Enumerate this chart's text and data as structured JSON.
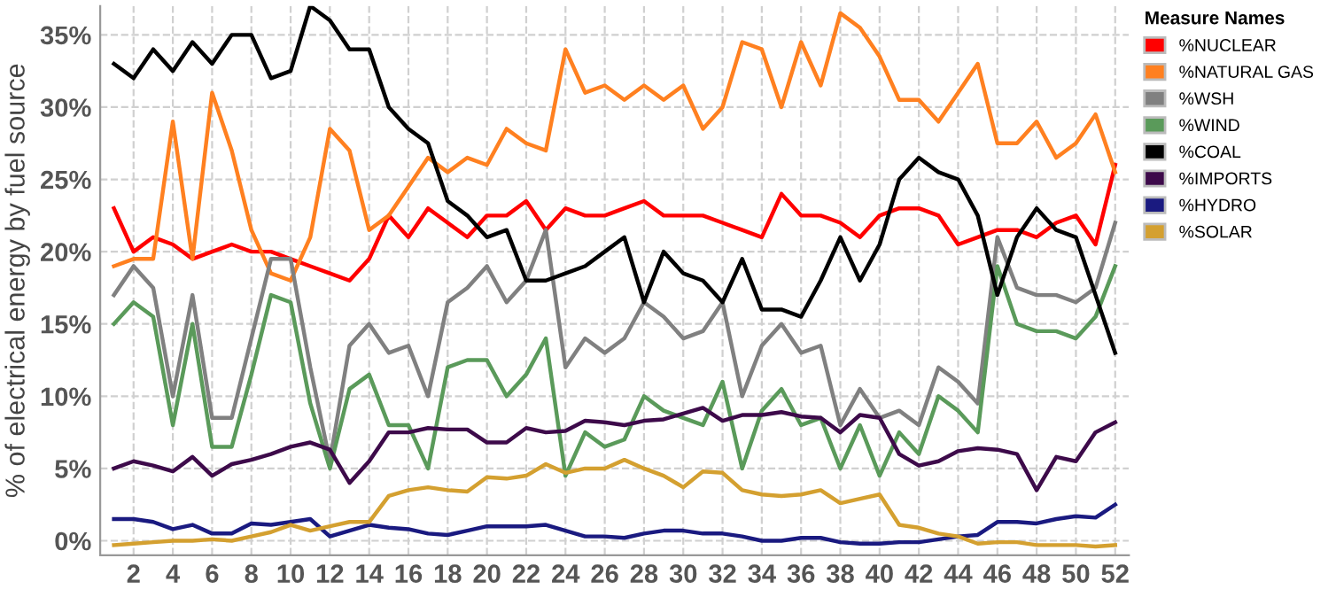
{
  "chart_data": {
    "type": "line",
    "ylabel": "% of electrical energy by fuel source",
    "legend_title": "Measure Names",
    "legend": "right",
    "grid": true,
    "x": [
      1,
      2,
      3,
      4,
      5,
      6,
      7,
      8,
      9,
      10,
      11,
      12,
      13,
      14,
      15,
      16,
      17,
      18,
      19,
      20,
      21,
      22,
      23,
      24,
      25,
      26,
      27,
      28,
      29,
      30,
      31,
      32,
      33,
      34,
      35,
      36,
      37,
      38,
      39,
      40,
      41,
      42,
      43,
      44,
      45,
      46,
      47,
      48,
      49,
      50,
      51,
      52
    ],
    "xlim": [
      0.3,
      52.7
    ],
    "xticks": [
      2,
      4,
      6,
      8,
      10,
      12,
      14,
      16,
      18,
      20,
      22,
      24,
      26,
      28,
      30,
      32,
      34,
      36,
      38,
      40,
      42,
      44,
      46,
      48,
      50,
      52
    ],
    "ylim": [
      -1,
      37
    ],
    "yticks": [
      {
        "value": 0,
        "label": "0%"
      },
      {
        "value": 5,
        "label": "5%"
      },
      {
        "value": 10,
        "label": "10%"
      },
      {
        "value": 15,
        "label": "15%"
      },
      {
        "value": 20,
        "label": "20%"
      },
      {
        "value": 25,
        "label": "25%"
      },
      {
        "value": 30,
        "label": "30%"
      },
      {
        "value": 35,
        "label": "35%"
      }
    ],
    "series": [
      {
        "name": "%NUCLEAR",
        "color": "#ff0000",
        "values": [
          23,
          20,
          21,
          20.5,
          19.5,
          20,
          20.5,
          20,
          20,
          19.5,
          19,
          18.5,
          18,
          19.5,
          22.5,
          21,
          23,
          22,
          21,
          22.5,
          22.5,
          23.5,
          21.5,
          23,
          22.5,
          22.5,
          23,
          23.5,
          22.5,
          22.5,
          22.5,
          22,
          21.5,
          21,
          24,
          22.5,
          22.5,
          22,
          21,
          22.5,
          23,
          23,
          22.5,
          20.5,
          21,
          21.5,
          21.5,
          21,
          22,
          22.5,
          20.5,
          26
        ]
      },
      {
        "name": "%NATURAL GAS",
        "color": "#ff8020",
        "values": [
          19,
          19.5,
          19.5,
          29,
          19.5,
          31,
          27,
          21.5,
          18.5,
          18,
          21,
          28.5,
          27,
          21.5,
          22.5,
          24.5,
          26.5,
          25.5,
          26.5,
          26,
          28.5,
          27.5,
          27,
          34,
          31,
          31.5,
          30.5,
          31.5,
          30.5,
          31.5,
          28.5,
          30,
          34.5,
          34,
          30,
          34.5,
          31.5,
          36.5,
          35.5,
          33.5,
          30.5,
          30.5,
          29,
          31,
          33,
          27.5,
          27.5,
          29,
          26.5,
          27.5,
          29.5,
          25.5
        ]
      },
      {
        "name": "%WSH",
        "color": "#808080",
        "values": [
          17,
          19,
          17.5,
          10,
          17,
          8.5,
          8.5,
          14,
          19.5,
          19.5,
          12,
          5.5,
          13.5,
          15,
          13,
          13.5,
          10,
          16.5,
          17.5,
          19,
          16.5,
          18,
          21.5,
          12,
          14,
          13,
          14,
          16.5,
          15.5,
          14,
          14.5,
          16.5,
          10,
          13.5,
          15,
          13,
          13.5,
          8,
          10.5,
          8.5,
          9,
          8,
          12,
          11,
          9.5,
          21,
          17.5,
          17,
          17,
          16.5,
          17.5,
          22
        ]
      },
      {
        "name": "%WIND",
        "color": "#5a9a5a",
        "values": [
          15,
          16.5,
          15.5,
          8,
          15,
          6.5,
          6.5,
          11.5,
          17,
          16.5,
          9.5,
          5,
          10.5,
          11.5,
          8,
          8,
          5,
          12,
          12.5,
          12.5,
          10,
          11.5,
          14,
          4.5,
          7.5,
          6.5,
          7,
          10,
          9,
          8.5,
          8,
          11,
          5,
          9,
          10.5,
          8,
          8.5,
          5,
          8,
          4.5,
          7.5,
          6,
          10,
          9,
          7.5,
          19,
          15,
          14.5,
          14.5,
          14,
          15.5,
          19
        ]
      },
      {
        "name": "%COAL",
        "color": "#000000",
        "values": [
          33,
          32,
          34,
          32.5,
          34.5,
          33,
          35,
          35,
          32,
          32.5,
          37,
          36,
          34,
          34,
          30,
          28.5,
          27.5,
          23.5,
          22.5,
          21,
          21.5,
          18,
          18,
          18.5,
          19,
          20,
          21,
          16.5,
          20,
          18.5,
          18,
          16.5,
          19.5,
          16,
          16,
          15.5,
          18,
          21,
          18,
          20.5,
          25,
          26.5,
          25.5,
          25,
          22.5,
          17,
          21,
          23,
          21.5,
          21,
          17,
          13
        ]
      },
      {
        "name": "%IMPORTS",
        "color": "#3d0a4a",
        "values": [
          5,
          5.5,
          5.2,
          4.8,
          5.8,
          4.5,
          5.3,
          5.6,
          6,
          6.5,
          6.8,
          6.3,
          4,
          5.5,
          7.5,
          7.5,
          7.8,
          7.7,
          7.7,
          6.8,
          6.8,
          7.8,
          7.5,
          7.6,
          8.3,
          8.2,
          8,
          8.3,
          8.4,
          8.8,
          9.2,
          8.3,
          8.7,
          8.7,
          8.9,
          8.6,
          8.5,
          7.5,
          8.7,
          8.5,
          6,
          5.2,
          5.5,
          6.2,
          6.4,
          6.3,
          6,
          3.5,
          5.8,
          5.5,
          7.5,
          8.2
        ]
      },
      {
        "name": "%HYDRO",
        "color": "#1a1a80",
        "values": [
          1.5,
          1.5,
          1.3,
          0.8,
          1.1,
          0.5,
          0.5,
          1.2,
          1.1,
          1.3,
          1.5,
          0.3,
          0.7,
          1.1,
          0.9,
          0.8,
          0.5,
          0.4,
          0.7,
          1,
          1,
          1,
          1.1,
          0.7,
          0.3,
          0.3,
          0.2,
          0.5,
          0.7,
          0.7,
          0.5,
          0.5,
          0.3,
          0,
          0,
          0.2,
          0.2,
          -0.1,
          -0.2,
          -0.2,
          -0.1,
          -0.1,
          0.1,
          0.3,
          0.4,
          1.3,
          1.3,
          1.2,
          1.5,
          1.7,
          1.6,
          2.5
        ]
      },
      {
        "name": "%SOLAR",
        "color": "#d4a030",
        "values": [
          -0.3,
          -0.2,
          -0.1,
          0,
          0,
          0.1,
          0,
          0.3,
          0.6,
          1.1,
          0.7,
          1,
          1.3,
          1.3,
          3.1,
          3.5,
          3.7,
          3.5,
          3.4,
          4.4,
          4.3,
          4.5,
          5.3,
          4.7,
          5,
          5,
          5.6,
          5,
          4.5,
          3.7,
          4.8,
          4.7,
          3.5,
          3.2,
          3.1,
          3.2,
          3.5,
          2.6,
          2.9,
          3.2,
          1.1,
          0.9,
          0.5,
          0.3,
          -0.2,
          -0.1,
          -0.1,
          -0.3,
          -0.3,
          -0.3,
          -0.4,
          -0.3
        ]
      }
    ]
  }
}
